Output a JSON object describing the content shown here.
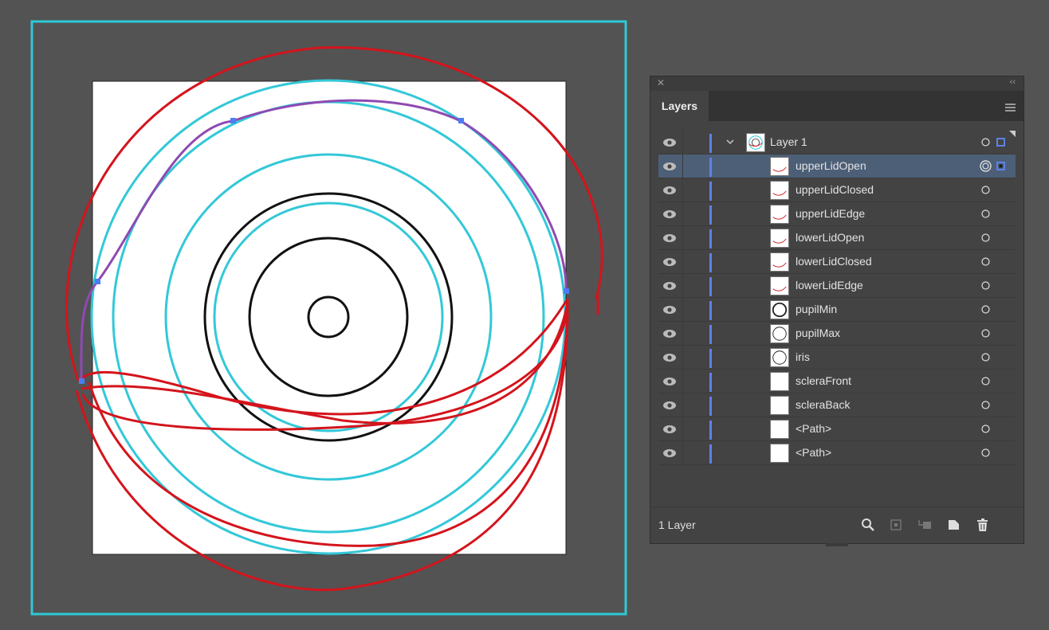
{
  "colors": {
    "background": "#535353",
    "artboard_frame": "#2ec9d6",
    "cyan_guides": "#33c8d8",
    "red_paths": "#d4141c",
    "selected_path": "#8f4ab2",
    "anchor": "#4c7cf3",
    "layer_color": "#5e81e6"
  },
  "panel": {
    "tab_label": "Layers",
    "close_icon": "close-icon",
    "collapse_icon": "collapse-arrows-icon",
    "menu_icon": "panel-menu-icon",
    "parent_layer": {
      "name": "Layer 1",
      "expanded": true
    },
    "sublayers": [
      {
        "name": "upperLidOpen",
        "selected": true
      },
      {
        "name": "upperLidClosed",
        "selected": false
      },
      {
        "name": "upperLidEdge",
        "selected": false
      },
      {
        "name": "lowerLidOpen",
        "selected": false
      },
      {
        "name": "lowerLidClosed",
        "selected": false
      },
      {
        "name": "lowerLidEdge",
        "selected": false
      },
      {
        "name": "pupilMin",
        "selected": false
      },
      {
        "name": "pupilMax",
        "selected": false
      },
      {
        "name": "iris",
        "selected": false
      },
      {
        "name": "scleraFront",
        "selected": false
      },
      {
        "name": "scleraBack",
        "selected": false
      },
      {
        "name": "<Path>",
        "selected": false
      },
      {
        "name": "<Path>",
        "selected": false
      }
    ],
    "footer_label": "1 Layer",
    "footer_icons": [
      "locate-object-icon",
      "make-clipping-mask-icon",
      "create-sublayer-icon",
      "create-new-layer-icon",
      "delete-layer-icon"
    ]
  }
}
